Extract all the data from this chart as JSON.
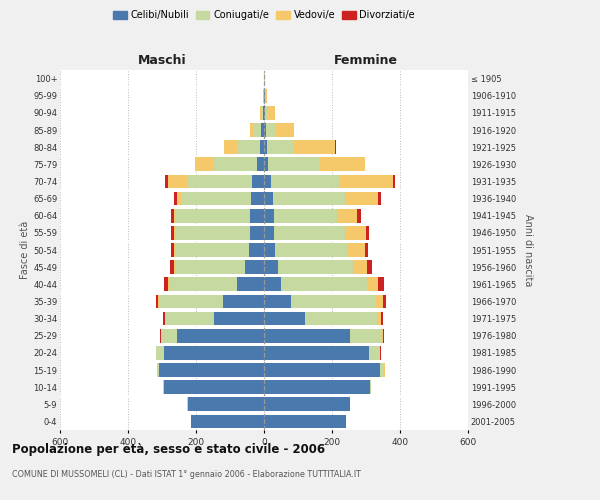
{
  "age_groups": [
    "0-4",
    "5-9",
    "10-14",
    "15-19",
    "20-24",
    "25-29",
    "30-34",
    "35-39",
    "40-44",
    "45-49",
    "50-54",
    "55-59",
    "60-64",
    "65-69",
    "70-74",
    "75-79",
    "80-84",
    "85-89",
    "90-94",
    "95-99",
    "100+"
  ],
  "birth_years": [
    "2001-2005",
    "1996-2000",
    "1991-1995",
    "1986-1990",
    "1981-1985",
    "1976-1980",
    "1971-1975",
    "1966-1970",
    "1961-1965",
    "1956-1960",
    "1951-1955",
    "1946-1950",
    "1941-1945",
    "1936-1940",
    "1931-1935",
    "1926-1930",
    "1921-1925",
    "1916-1920",
    "1911-1915",
    "1906-1910",
    "≤ 1905"
  ],
  "males_celibe": [
    215,
    225,
    295,
    310,
    295,
    255,
    148,
    120,
    80,
    55,
    44,
    42,
    42,
    38,
    35,
    22,
    12,
    8,
    3,
    1,
    1
  ],
  "males_coniugato": [
    0,
    1,
    2,
    6,
    22,
    47,
    142,
    188,
    198,
    205,
    218,
    218,
    218,
    205,
    188,
    128,
    68,
    22,
    6,
    1,
    0
  ],
  "males_vedovo": [
    0,
    0,
    0,
    0,
    0,
    1,
    2,
    3,
    4,
    4,
    4,
    6,
    6,
    12,
    58,
    52,
    38,
    12,
    2,
    0,
    0
  ],
  "males_divorziato": [
    0,
    0,
    0,
    0,
    1,
    2,
    6,
    6,
    12,
    12,
    9,
    9,
    9,
    9,
    9,
    2,
    1,
    0,
    0,
    0,
    0
  ],
  "females_nubile": [
    242,
    252,
    312,
    342,
    308,
    252,
    120,
    80,
    50,
    40,
    32,
    30,
    28,
    25,
    20,
    12,
    8,
    5,
    3,
    2,
    1
  ],
  "females_coniugata": [
    0,
    1,
    3,
    12,
    32,
    92,
    212,
    248,
    252,
    222,
    212,
    208,
    188,
    212,
    202,
    152,
    80,
    30,
    8,
    2,
    1
  ],
  "females_vedova": [
    0,
    0,
    0,
    1,
    2,
    6,
    12,
    22,
    32,
    42,
    52,
    62,
    58,
    98,
    158,
    132,
    122,
    52,
    20,
    5,
    2
  ],
  "females_divorziata": [
    0,
    0,
    0,
    0,
    1,
    2,
    6,
    9,
    18,
    14,
    10,
    10,
    10,
    10,
    5,
    2,
    1,
    0,
    0,
    0,
    0
  ],
  "color_celibe": "#4a7aad",
  "color_coniugato": "#c5d9a0",
  "color_vedovo": "#f5c96a",
  "color_divorziato": "#cc2222",
  "xlim": 600,
  "title": "Popolazione per età, sesso e stato civile - 2006",
  "subtitle": "COMUNE DI MUSSOMELI (CL) - Dati ISTAT 1° gennaio 2006 - Elaborazione TUTTITALIA.IT",
  "ylabel_left": "Fasce di età",
  "ylabel_right": "Anni di nascita",
  "label_maschi": "Maschi",
  "label_femmine": "Femmine",
  "legend_labels": [
    "Celibi/Nubili",
    "Coniugati/e",
    "Vedovi/e",
    "Divorziati/e"
  ],
  "bg_color": "#f0f0f0",
  "plot_bg_color": "#ffffff"
}
